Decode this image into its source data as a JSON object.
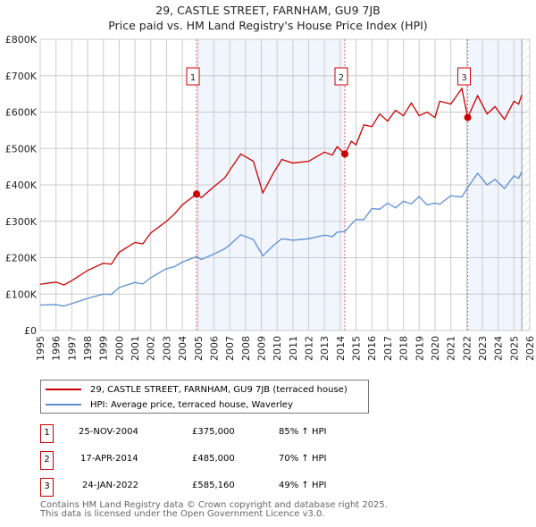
{
  "chart_data": {
    "type": "line",
    "title": "29, CASTLE STREET, FARNHAM, GU9 7JB",
    "subtitle": "Price paid vs. HM Land Registry's House Price Index (HPI)",
    "xlim": [
      1995,
      2026
    ],
    "ylim": [
      0,
      800000
    ],
    "y_ticks": [
      0,
      100000,
      200000,
      300000,
      400000,
      500000,
      600000,
      700000,
      800000
    ],
    "y_tick_labels": [
      "£0",
      "£100K",
      "£200K",
      "£300K",
      "£400K",
      "£500K",
      "£600K",
      "£700K",
      "£800K"
    ],
    "x_ticks": [
      1995,
      1996,
      1997,
      1998,
      1999,
      2000,
      2001,
      2002,
      2003,
      2004,
      2005,
      2006,
      2007,
      2008,
      2009,
      2010,
      2011,
      2012,
      2013,
      2014,
      2015,
      2016,
      2017,
      2018,
      2019,
      2020,
      2021,
      2022,
      2023,
      2024,
      2025,
      2026
    ],
    "grid": true,
    "series": [
      {
        "name": "29, CASTLE STREET, FARNHAM, GU9 7JB (terraced house)",
        "color": "#cc0000",
        "x": [
          1995,
          1996,
          1996.5,
          1997,
          1998,
          1999,
          1999.5,
          2000,
          2001,
          2001.5,
          2002,
          2003,
          2003.5,
          2004,
          2004.9,
          2005.2,
          2006,
          2006.7,
          2007,
          2007.7,
          2008.5,
          2009.1,
          2009.8,
          2010.3,
          2011,
          2012,
          2013,
          2013.5,
          2013.8,
          2014.3,
          2014.7,
          2015,
          2015.5,
          2016,
          2016.5,
          2017,
          2017.5,
          2018,
          2018.5,
          2019,
          2019.5,
          2020,
          2020.3,
          2021,
          2021.7,
          2022.07,
          2022.7,
          2023.3,
          2023.8,
          2024.4,
          2025,
          2025.3,
          2025.5
        ],
        "y": [
          127000,
          133000,
          125000,
          137000,
          165000,
          185000,
          182000,
          215000,
          242000,
          238000,
          268000,
          300000,
          320000,
          345000,
          375000,
          365000,
          395000,
          420000,
          440000,
          485000,
          465000,
          378000,
          435000,
          470000,
          460000,
          465000,
          490000,
          482000,
          505000,
          485000,
          520000,
          510000,
          565000,
          560000,
          595000,
          575000,
          605000,
          590000,
          625000,
          590000,
          600000,
          585000,
          630000,
          622000,
          665000,
          585160,
          645000,
          595000,
          615000,
          580000,
          630000,
          622000,
          648000
        ]
      },
      {
        "name": "HPI: Average price, terraced house, Waverley",
        "color": "#5b8fd4",
        "x": [
          1995,
          1996,
          1996.5,
          1997,
          1998,
          1999,
          1999.5,
          2000,
          2001,
          2001.5,
          2002,
          2003,
          2003.5,
          2004,
          2004.9,
          2005.2,
          2006,
          2006.7,
          2007,
          2007.7,
          2008.5,
          2009.1,
          2009.8,
          2010.3,
          2011,
          2012,
          2013,
          2013.5,
          2013.8,
          2014.3,
          2014.7,
          2015,
          2015.5,
          2016,
          2016.5,
          2017,
          2017.5,
          2018,
          2018.5,
          2019,
          2019.5,
          2020,
          2020.3,
          2021,
          2021.7,
          2022.07,
          2022.7,
          2023.3,
          2023.8,
          2024.4,
          2025,
          2025.3,
          2025.5
        ],
        "y": [
          70000,
          71000,
          67000,
          74000,
          88000,
          100000,
          99000,
          118000,
          132000,
          128000,
          145000,
          170000,
          175000,
          188000,
          203000,
          195000,
          210000,
          225000,
          235000,
          263000,
          250000,
          205000,
          235000,
          252000,
          248000,
          252000,
          262000,
          258000,
          270000,
          272000,
          292000,
          305000,
          305000,
          335000,
          333000,
          350000,
          337000,
          355000,
          348000,
          368000,
          345000,
          350000,
          347000,
          370000,
          367000,
          393000,
          432000,
          400000,
          415000,
          390000,
          425000,
          418000,
          437000
        ]
      }
    ],
    "sales": [
      {
        "label": "1",
        "date": "25-NOV-2004",
        "x": 2004.9,
        "price": "£375,000",
        "value": 375000,
        "hpi": "85% ↑ HPI"
      },
      {
        "label": "2",
        "date": "17-APR-2014",
        "x": 2014.29,
        "price": "£485,000",
        "value": 485000,
        "hpi": "70% ↑ HPI"
      },
      {
        "label": "3",
        "date": "24-JAN-2022",
        "x": 2022.07,
        "price": "£585,160",
        "value": 585160,
        "hpi": "49% ↑ HPI"
      }
    ],
    "shaded_ranges": [
      [
        2004.9,
        2014.29
      ],
      [
        2022.07,
        2025.5
      ]
    ],
    "hatched_from": 2025.5,
    "legend_position": "below"
  },
  "footer": [
    "Contains HM Land Registry data © Crown copyright and database right 2025.",
    "This data is licensed under the Open Government Licence v3.0."
  ]
}
